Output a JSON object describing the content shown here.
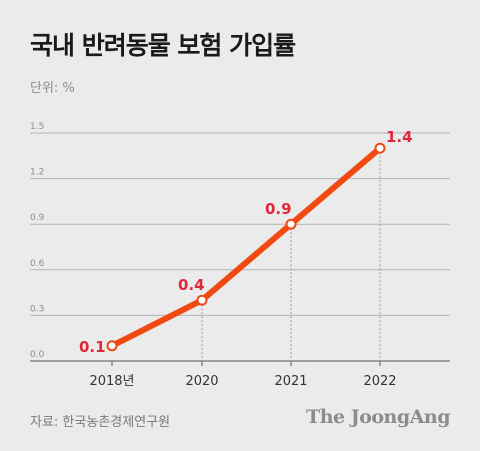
{
  "title": "국내 반려동물 보험 가입률",
  "unit_label": "단위: %",
  "source": "자료: 한국농촌경제연구원",
  "brand": "The JoongAng",
  "colors": {
    "background": "#ebebeb",
    "line": "#f04a12",
    "data_label": "#e0283a",
    "gridline": "#b3b3b3",
    "axis": "#555555"
  },
  "chart_data": {
    "type": "line",
    "categories": [
      "2018년",
      "2020",
      "2021",
      "2022"
    ],
    "series": [
      {
        "values": [
          0.1,
          0.4,
          0.9,
          1.4
        ],
        "labels": [
          "0.1",
          "0.4",
          "0.9",
          "1.4"
        ]
      }
    ],
    "yticks": [
      "0.0",
      "0.3",
      "0.6",
      "0.9",
      "1.2",
      "1.5"
    ],
    "ylim": [
      0,
      1.5
    ],
    "grid": true,
    "title": "국내 반려동물 보험 가입률",
    "xlabel": "",
    "ylabel": ""
  }
}
